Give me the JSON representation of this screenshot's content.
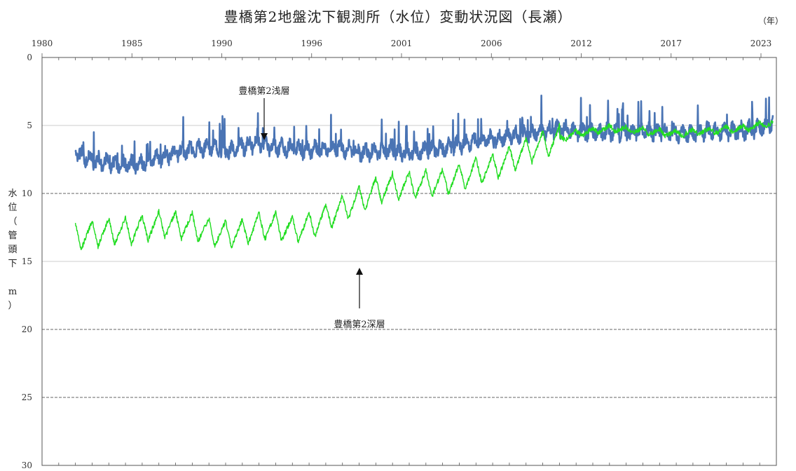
{
  "chart_data": {
    "type": "line",
    "title": "豊橋第2地盤沈下観測所（水位）変動状況図（長瀬）",
    "xlabel": "（年）",
    "ylabel": "水位（管頭下 m）",
    "x_tick_labels": [
      "1980",
      "1985",
      "1990",
      "1996",
      "2001",
      "2006",
      "2012",
      "2017",
      "2023"
    ],
    "y_tick_labels": [
      "0",
      "5",
      "10",
      "15",
      "20",
      "25",
      "30"
    ],
    "xlim": [
      1980,
      2024
    ],
    "ylim": [
      30,
      0
    ],
    "y_inverted": true,
    "grid": "horizontal",
    "annotations": [
      "豊橋第2浅層",
      "豊橋第2深層"
    ],
    "series": [
      {
        "name": "豊橋第2浅層",
        "color": "#4a74b4",
        "x": [
          1982.0,
          1983,
          1984,
          1985,
          1986,
          1987,
          1988,
          1989,
          1990,
          1991,
          1992,
          1993,
          1994,
          1995,
          1996,
          1997,
          1998,
          1999,
          2000,
          2001,
          2002,
          2003,
          2004,
          2005,
          2006,
          2007,
          2008,
          2009,
          2010,
          2011,
          2012,
          2013,
          2014,
          2015,
          2016,
          2017,
          2018,
          2019,
          2020,
          2021,
          2022,
          2023,
          2023.8
        ],
        "y": [
          7.0,
          7.5,
          7.8,
          7.9,
          7.7,
          7.4,
          7.0,
          6.8,
          6.6,
          6.9,
          6.5,
          6.3,
          6.6,
          6.7,
          6.8,
          6.7,
          6.7,
          7.0,
          6.9,
          6.9,
          7.0,
          6.8,
          6.7,
          6.4,
          6.2,
          6.0,
          5.8,
          5.6,
          5.4,
          5.3,
          5.4,
          5.5,
          5.5,
          5.5,
          5.4,
          5.5,
          5.6,
          5.6,
          5.4,
          5.4,
          5.4,
          5.2,
          4.8
        ]
      },
      {
        "name": "豊橋第2深層",
        "color": "#22dd22",
        "x": [
          1982.0,
          1983,
          1984,
          1985,
          1986,
          1987,
          1988,
          1989,
          1990,
          1991,
          1992,
          1993,
          1994,
          1995,
          1996,
          1997,
          1998,
          1999,
          2000,
          2001,
          2002,
          2003,
          2004,
          2005,
          2006,
          2007,
          2008,
          2009,
          2010,
          2011,
          2012,
          2013,
          2014,
          2015,
          2016,
          2017,
          2018,
          2019,
          2020,
          2021,
          2022,
          2023,
          2023.8
        ],
        "y": [
          13.2,
          13.0,
          12.8,
          12.8,
          12.6,
          12.3,
          12.3,
          12.4,
          12.8,
          13.0,
          12.9,
          12.4,
          12.4,
          12.7,
          12.4,
          11.8,
          11.1,
          10.5,
          9.8,
          9.5,
          9.4,
          9.3,
          9.2,
          8.8,
          8.4,
          8.1,
          7.5,
          6.9,
          6.4,
          6.0,
          5.6,
          5.4,
          5.2,
          5.3,
          5.4,
          5.5,
          5.6,
          5.5,
          5.4,
          5.3,
          5.2,
          5.0,
          4.8
        ]
      }
    ]
  }
}
